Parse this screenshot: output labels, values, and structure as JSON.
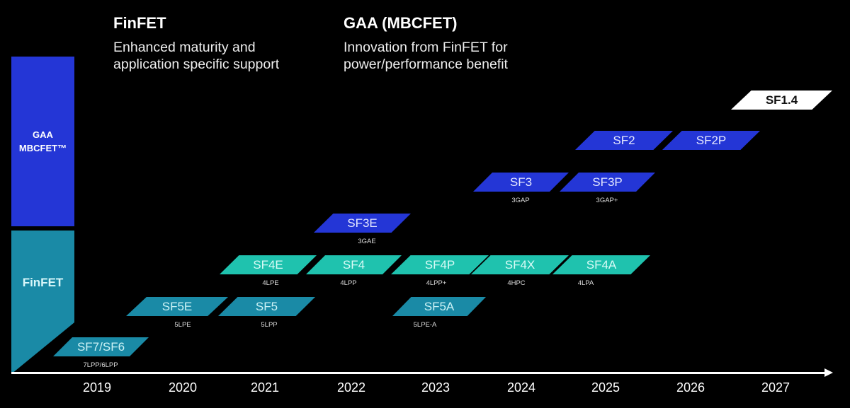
{
  "headers": [
    {
      "title": "FinFET",
      "lines": [
        "Enhanced maturity and",
        "application specific support"
      ]
    },
    {
      "title": "GAA (MBCFET)",
      "lines": [
        "Innovation from FinFET for",
        "power/performance benefit"
      ]
    }
  ],
  "bars": {
    "gaa": [
      "GAA",
      "MBCFET™"
    ],
    "finfet": "FinFET"
  },
  "colors": {
    "gaa": "#2436d6",
    "finfet_early": "#1a8aa6",
    "finfet_4nm": "#1fc2ae",
    "future": "#ffffff"
  },
  "nodes": [
    {
      "name": "SF7/SF6",
      "process": "7LPP/6LPP"
    },
    {
      "name": "SF5E",
      "process": "5LPE"
    },
    {
      "name": "SF5",
      "process": "5LPP"
    },
    {
      "name": "SF4E",
      "process": "4LPE"
    },
    {
      "name": "SF4",
      "process": "4LPP"
    },
    {
      "name": "SF4P",
      "process": "4LPP+"
    },
    {
      "name": "SF4X",
      "process": "4HPC"
    },
    {
      "name": "SF4A",
      "process": "4LPA"
    },
    {
      "name": "SF5A",
      "process": "5LPE-A"
    },
    {
      "name": "SF3E",
      "process": "3GAE"
    },
    {
      "name": "SF3",
      "process": "3GAP"
    },
    {
      "name": "SF3P",
      "process": "3GAP+"
    },
    {
      "name": "SF2"
    },
    {
      "name": "SF2P"
    },
    {
      "name": "SF1.4"
    }
  ],
  "years": [
    "2019",
    "2020",
    "2021",
    "2022",
    "2023",
    "2024",
    "2025",
    "2026",
    "2027"
  ]
}
